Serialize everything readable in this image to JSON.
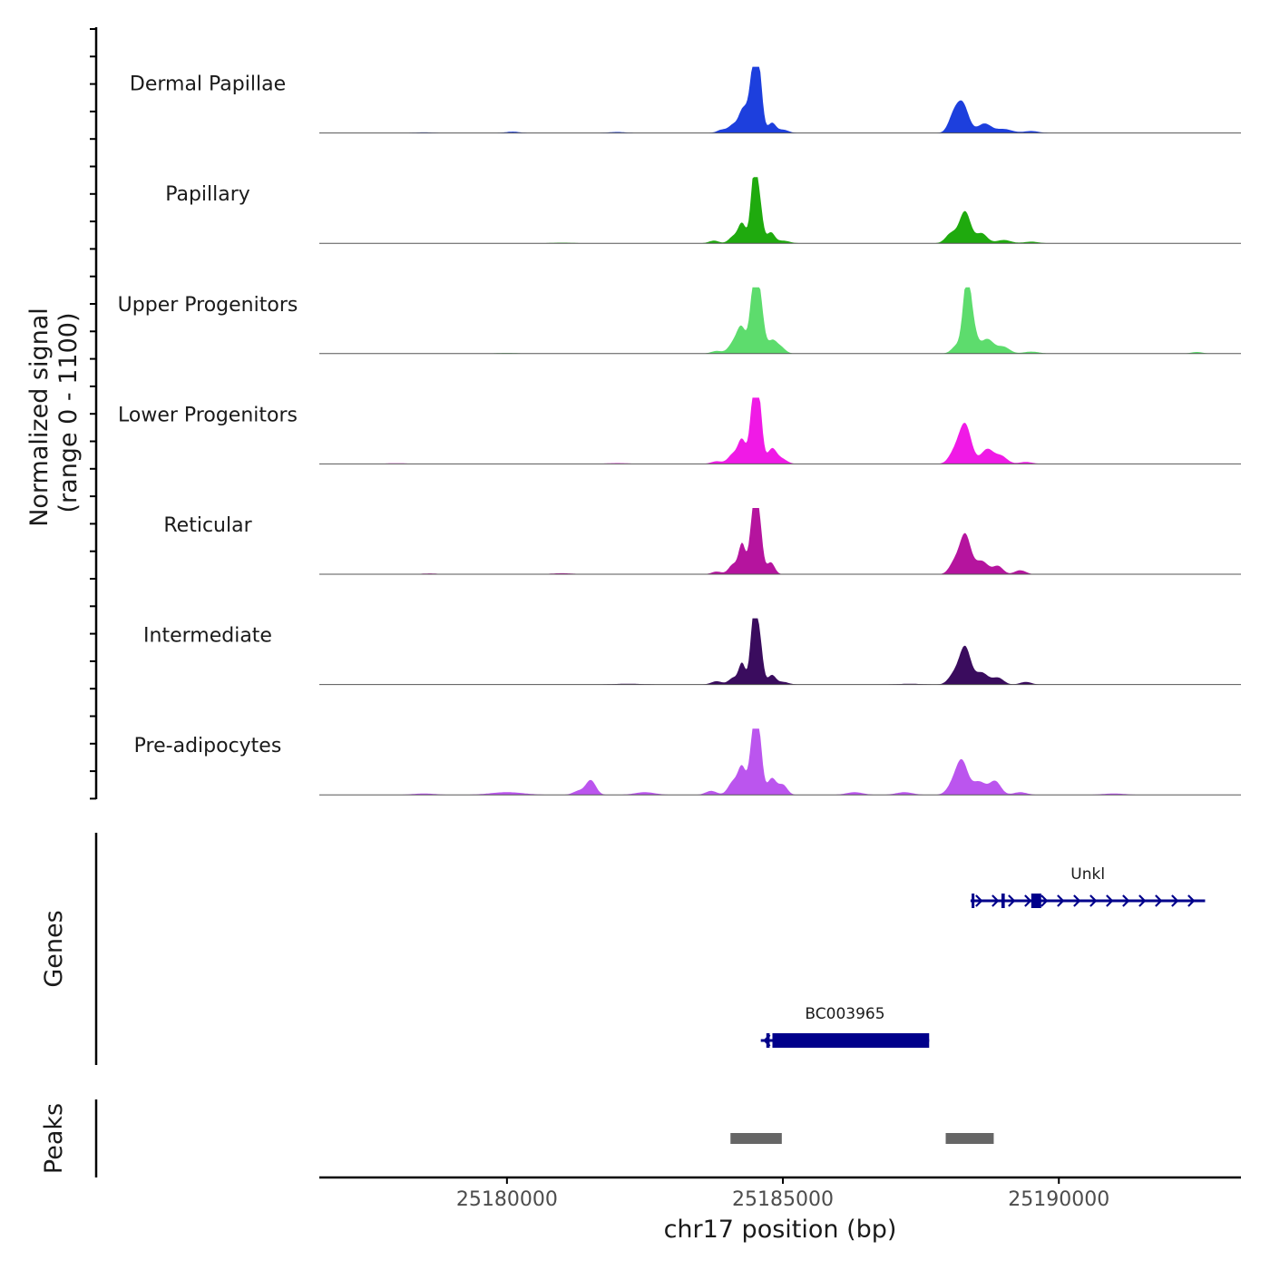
{
  "chart_data": {
    "type": "area",
    "ylabel": [
      "Normalized signal",
      "(range 0 - 1100)"
    ],
    "xlabel": "chr17 position (bp)",
    "xlim": [
      25176600,
      25193300
    ],
    "x_ticks": [
      25180000,
      25185000,
      25190000
    ],
    "x_tick_labels": [
      "25180000",
      "25185000",
      "25190000"
    ],
    "signal_ylim": [
      0,
      1100
    ],
    "series": [
      {
        "name": "Dermal Papillae",
        "color": "#1d3fdd",
        "peaks": [
          [
            25184475,
            1000,
            70
          ],
          [
            25184575,
            700,
            60
          ],
          [
            25184260,
            280,
            70
          ],
          [
            25184100,
            120,
            80
          ],
          [
            25184800,
            150,
            70
          ],
          [
            25184350,
            160,
            70
          ],
          [
            25188250,
            450,
            110
          ],
          [
            25188080,
            200,
            90
          ],
          [
            25188650,
            140,
            120
          ],
          [
            25183900,
            50,
            90
          ],
          [
            25185000,
            50,
            100
          ],
          [
            25189000,
            60,
            150
          ],
          [
            25189500,
            30,
            130
          ],
          [
            25180100,
            20,
            120
          ],
          [
            25178500,
            10,
            150
          ],
          [
            25182000,
            15,
            150
          ]
        ]
      },
      {
        "name": "Papillary",
        "color": "#1faa0e",
        "peaks": [
          [
            25184475,
            1000,
            60
          ],
          [
            25184575,
            560,
            60
          ],
          [
            25184260,
            300,
            70
          ],
          [
            25184100,
            100,
            80
          ],
          [
            25184780,
            160,
            70
          ],
          [
            25188300,
            480,
            100
          ],
          [
            25188050,
            150,
            100
          ],
          [
            25188600,
            150,
            100
          ],
          [
            25183750,
            40,
            90
          ],
          [
            25185000,
            40,
            120
          ],
          [
            25189000,
            50,
            130
          ],
          [
            25189500,
            25,
            130
          ],
          [
            25181000,
            10,
            200
          ]
        ]
      },
      {
        "name": "Upper Progenitors",
        "color": "#5ddc6d",
        "peaks": [
          [
            25184475,
            1000,
            70
          ],
          [
            25184585,
            720,
            70
          ],
          [
            25184250,
            380,
            80
          ],
          [
            25184100,
            150,
            90
          ],
          [
            25184800,
            180,
            80
          ],
          [
            25184950,
            100,
            90
          ],
          [
            25188330,
            1000,
            70
          ],
          [
            25188430,
            380,
            80
          ],
          [
            25188150,
            120,
            90
          ],
          [
            25188700,
            220,
            120
          ],
          [
            25189000,
            100,
            110
          ],
          [
            25183800,
            40,
            100
          ],
          [
            25189500,
            30,
            140
          ],
          [
            25192500,
            25,
            100
          ],
          [
            25180000,
            10,
            200
          ]
        ]
      },
      {
        "name": "Lower Progenitors",
        "color": "#f01ae6",
        "peaks": [
          [
            25184470,
            1000,
            65
          ],
          [
            25184570,
            800,
            60
          ],
          [
            25184260,
            350,
            70
          ],
          [
            25184100,
            150,
            90
          ],
          [
            25184800,
            220,
            80
          ],
          [
            25184970,
            80,
            100
          ],
          [
            25188300,
            600,
            110
          ],
          [
            25188100,
            150,
            100
          ],
          [
            25188700,
            220,
            110
          ],
          [
            25188950,
            120,
            110
          ],
          [
            25183800,
            40,
            100
          ],
          [
            25189400,
            30,
            120
          ],
          [
            25178000,
            10,
            200
          ],
          [
            25182000,
            12,
            200
          ]
        ]
      },
      {
        "name": "Reticular",
        "color": "#b5149e",
        "peaks": [
          [
            25184475,
            1000,
            70
          ],
          [
            25184575,
            600,
            60
          ],
          [
            25184260,
            450,
            60
          ],
          [
            25184100,
            150,
            80
          ],
          [
            25184780,
            180,
            70
          ],
          [
            25188300,
            600,
            100
          ],
          [
            25188100,
            160,
            90
          ],
          [
            25188600,
            200,
            120
          ],
          [
            25188900,
            120,
            90
          ],
          [
            25183800,
            40,
            90
          ],
          [
            25189300,
            60,
            100
          ],
          [
            25181000,
            15,
            200
          ],
          [
            25178600,
            12,
            150
          ]
        ]
      },
      {
        "name": "Intermediate",
        "color": "#3a0c5e",
        "peaks": [
          [
            25184470,
            1000,
            60
          ],
          [
            25184575,
            650,
            60
          ],
          [
            25184260,
            320,
            60
          ],
          [
            25184100,
            100,
            80
          ],
          [
            25184800,
            140,
            70
          ],
          [
            25188300,
            560,
            100
          ],
          [
            25188100,
            150,
            100
          ],
          [
            25188600,
            180,
            120
          ],
          [
            25188900,
            100,
            100
          ],
          [
            25183800,
            50,
            100
          ],
          [
            25185000,
            40,
            100
          ],
          [
            25189400,
            40,
            100
          ],
          [
            25182200,
            12,
            250
          ],
          [
            25187300,
            12,
            200
          ]
        ]
      },
      {
        "name": "Pre-adipocytes",
        "color": "#bb55ee",
        "peaks": [
          [
            25184475,
            1000,
            70
          ],
          [
            25184575,
            650,
            60
          ],
          [
            25184260,
            400,
            70
          ],
          [
            25184100,
            200,
            90
          ],
          [
            25184800,
            250,
            80
          ],
          [
            25185000,
            150,
            80
          ],
          [
            25181520,
            220,
            90
          ],
          [
            25181300,
            60,
            100
          ],
          [
            25188250,
            450,
            100
          ],
          [
            25188100,
            180,
            110
          ],
          [
            25188550,
            200,
            130
          ],
          [
            25188850,
            200,
            100
          ],
          [
            25183700,
            60,
            100
          ],
          [
            25182500,
            40,
            180
          ],
          [
            25180000,
            40,
            300
          ],
          [
            25178500,
            20,
            200
          ],
          [
            25186300,
            40,
            150
          ],
          [
            25187200,
            40,
            150
          ],
          [
            25189300,
            40,
            120
          ],
          [
            25191000,
            20,
            200
          ]
        ]
      }
    ],
    "genes": [
      {
        "name": "Unkl",
        "strand": "+",
        "start": 25188400,
        "end": 25192650,
        "exons": [
          [
            25188420,
            25188470
          ],
          [
            25188960,
            25189020
          ],
          [
            25189500,
            25189680
          ]
        ]
      },
      {
        "name": "BC003965",
        "strand": "-",
        "start": 25184600,
        "end": 25187650,
        "exons": [
          [
            25184700,
            25184760
          ],
          [
            25184810,
            25187650
          ]
        ]
      }
    ],
    "genes_label": "Genes",
    "peaks": [
      [
        25184050,
        25184980
      ],
      [
        25187950,
        25188820
      ]
    ],
    "peaks_label": "Peaks",
    "peak_color": "#666666",
    "gene_color": "#00008b"
  }
}
